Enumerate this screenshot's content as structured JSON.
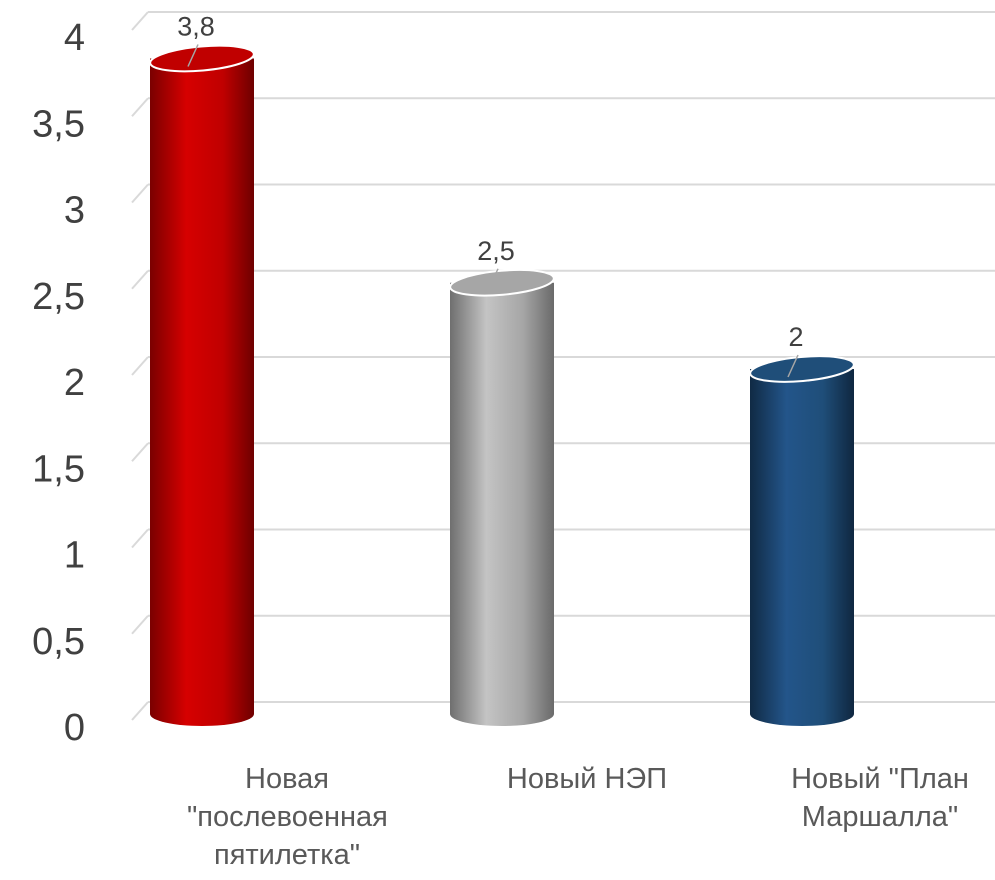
{
  "chart_data": {
    "type": "bar",
    "categories": [
      "Новая \"послевоенная пятилетка\"",
      "Новый НЭП",
      "Новый \"План Маршалла\""
    ],
    "values": [
      3.8,
      2.5,
      2
    ],
    "value_labels": [
      "3,8",
      "2,5",
      "2"
    ],
    "colors": [
      "#c00000",
      "#a6a6a6",
      "#1f4e79"
    ],
    "ylim": [
      0,
      4
    ],
    "yticks": [
      0,
      {
        "value": 0.5,
        "label": "0,5"
      },
      1,
      {
        "value": 1.5,
        "label": "1,5"
      },
      2,
      {
        "value": 2.5,
        "label": "2,5"
      },
      3,
      {
        "value": 3.5,
        "label": "3,5"
      },
      4
    ],
    "grid": true
  }
}
